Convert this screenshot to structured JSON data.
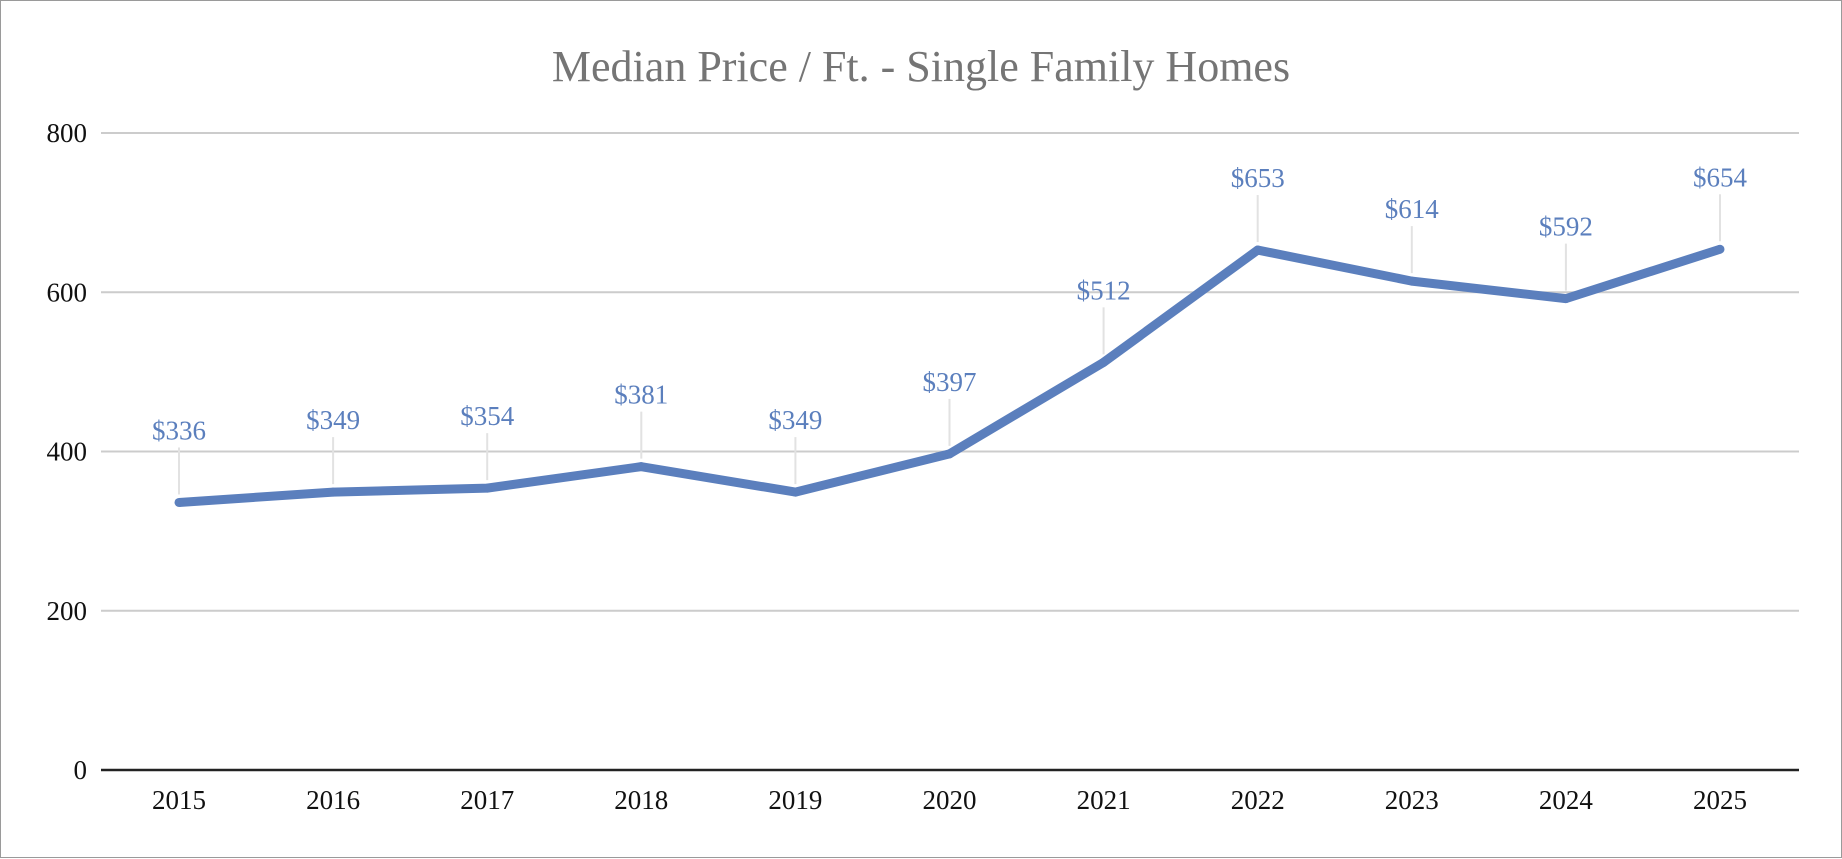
{
  "chart_data": {
    "type": "line",
    "title": "Median Price / Ft. - Single Family Homes",
    "xlabel": "",
    "ylabel": "",
    "categories": [
      "2015",
      "2016",
      "2017",
      "2018",
      "2019",
      "2020",
      "2021",
      "2022",
      "2023",
      "2024",
      "2025"
    ],
    "series": [
      {
        "values": [
          336,
          349,
          354,
          381,
          349,
          397,
          512,
          653,
          614,
          592,
          654
        ],
        "labels": [
          "$336",
          "$349",
          "$354",
          "$381",
          "$349",
          "$397",
          "$512",
          "$653",
          "$614",
          "$592",
          "$654"
        ],
        "color": "#5b7fbd"
      }
    ],
    "ylim": [
      0,
      800
    ],
    "yticks": [
      "0",
      "200",
      "400",
      "600",
      "800"
    ],
    "grid": true,
    "legend": "none",
    "colors": {
      "gridline": "#cccccc",
      "axis": "#222222",
      "leader": "#e2e2e2"
    }
  }
}
